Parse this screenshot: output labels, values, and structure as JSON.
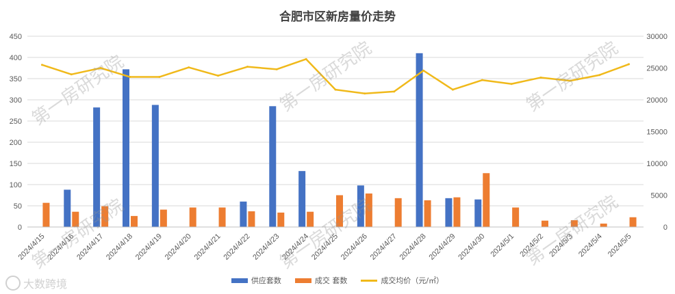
{
  "chart_data": {
    "type": "bar",
    "title": "合肥市区新房量价走势",
    "categories": [
      "2024/4/15",
      "2024/4/16",
      "2024/4/17",
      "2024/4/18",
      "2024/4/19",
      "2024/4/20",
      "2024/4/21",
      "2024/4/22",
      "2024/4/23",
      "2024/4/24",
      "2024/4/25",
      "2024/4/26",
      "2024/4/27",
      "2024/4/28",
      "2024/4/29",
      "2024/4/30",
      "2024/5/1",
      "2024/5/2",
      "2024/5/3",
      "2024/5/4",
      "2024/5/5"
    ],
    "y_left": {
      "min": 0,
      "max": 450,
      "ticks": [
        0,
        50,
        100,
        150,
        200,
        250,
        300,
        350,
        400,
        450
      ]
    },
    "y_right": {
      "min": 0,
      "max": 30000,
      "ticks": [
        0,
        5000,
        10000,
        15000,
        20000,
        25000,
        30000
      ]
    },
    "grid": true,
    "legend_position": "bottom",
    "series": [
      {
        "name": "供应套数",
        "type": "bar",
        "axis": "left",
        "color": "#4472C4",
        "values": [
          0,
          88,
          282,
          372,
          288,
          0,
          0,
          60,
          285,
          132,
          0,
          98,
          0,
          410,
          68,
          65,
          0,
          0,
          0,
          0,
          0
        ]
      },
      {
        "name": "成交 套数",
        "type": "bar",
        "axis": "left",
        "color": "#ED7D31",
        "values": [
          57,
          36,
          49,
          26,
          41,
          46,
          46,
          37,
          34,
          36,
          75,
          79,
          68,
          63,
          70,
          127,
          46,
          15,
          16,
          8,
          23
        ]
      },
      {
        "name": "成交均价（元/㎡）",
        "type": "line",
        "axis": "right",
        "color": "#F0B91A",
        "values": [
          25500,
          24000,
          25000,
          23600,
          23600,
          25100,
          23800,
          25200,
          24800,
          26400,
          21600,
          21000,
          21300,
          24600,
          21600,
          23100,
          22500,
          23500,
          23000,
          23900,
          25600
        ]
      }
    ]
  },
  "watermarks": [
    "第一房研究院",
    "第一房研究院",
    "第一房研究院",
    "第一房研究院",
    "第一房研究院",
    "第一房研究院"
  ],
  "brand": {
    "text": "大数跨境"
  }
}
